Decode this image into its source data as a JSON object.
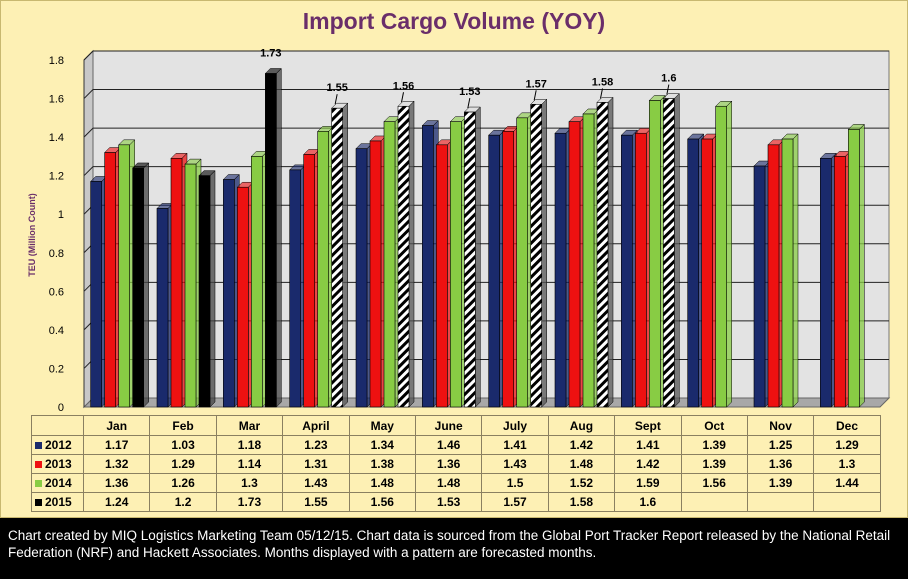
{
  "title": "Import Cargo Volume (YOY)",
  "footer_note": "Chart created by MIQ Logistics Marketing Team 05/12/15. Chart data is sourced from the Global Port Tracker Report released by the National Retail Federation (NRF) and Hackett Associates. Months displayed with a pattern are forecasted months.",
  "chart_data": {
    "type": "bar",
    "title": "Import Cargo Volume (YOY)",
    "xlabel": "",
    "ylabel": "TEU (Million Count)",
    "ylim": [
      0,
      1.8
    ],
    "yticks": [
      "0",
      "0.2",
      "0.4",
      "0.6",
      "0.8",
      "1",
      "1.2",
      "1.4",
      "1.6",
      "1.8"
    ],
    "grid": true,
    "legend": "data table below chart",
    "categories": [
      "Jan",
      "Feb",
      "Mar",
      "April",
      "May",
      "June",
      "July",
      "Aug",
      "Sept",
      "Oct",
      "Nov",
      "Dec"
    ],
    "series": [
      {
        "name": "2012",
        "color": "#1a2a6c",
        "values": [
          1.17,
          1.03,
          1.18,
          1.23,
          1.34,
          1.46,
          1.41,
          1.42,
          1.41,
          1.39,
          1.25,
          1.29
        ]
      },
      {
        "name": "2013",
        "color": "#ee1111",
        "values": [
          1.32,
          1.29,
          1.14,
          1.31,
          1.38,
          1.36,
          1.43,
          1.48,
          1.42,
          1.39,
          1.36,
          1.3
        ]
      },
      {
        "name": "2014",
        "color": "#88cc44",
        "values": [
          1.36,
          1.26,
          1.3,
          1.43,
          1.48,
          1.48,
          1.5,
          1.52,
          1.59,
          1.56,
          1.39,
          1.44
        ]
      },
      {
        "name": "2015",
        "color": "#000000",
        "values": [
          1.24,
          1.2,
          1.73,
          1.55,
          1.56,
          1.53,
          1.57,
          1.58,
          1.6,
          null,
          null,
          null
        ],
        "forecast_from_index": 3
      }
    ],
    "data_labels_2015": [
      "",
      "",
      "1.73",
      "1.55",
      "1.56",
      "1.53",
      "1.57",
      "1.58",
      "1.6"
    ]
  }
}
